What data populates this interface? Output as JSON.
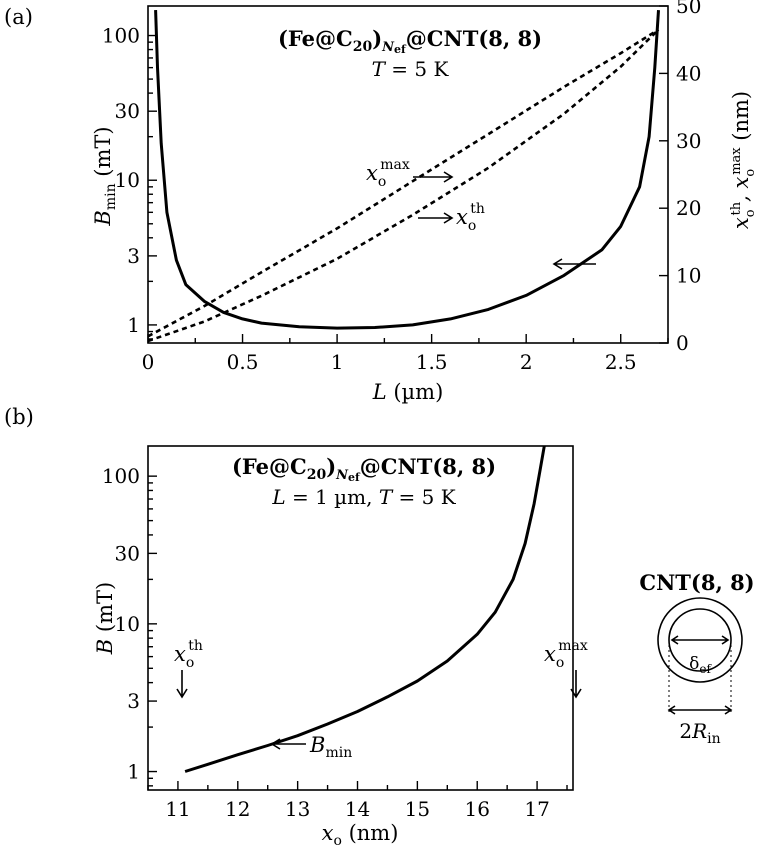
{
  "chart_data": [
    {
      "panel": "(a)",
      "type": "line",
      "title": "(Fe@C20)Nef@CNT(8, 8)",
      "title_parts": {
        "a": "(Fe@C",
        "b": "20",
        "c": ")",
        "d": "N",
        "e": "ef",
        "f": "@CNT(8, 8)"
      },
      "subtitle_parts": {
        "t": "T",
        "rest": " = 5 K"
      },
      "xlabel_parts": {
        "a": "L",
        "b": " (µm)"
      },
      "ylabel_left_parts": {
        "a": "B",
        "b": "min",
        "c": " (mT)"
      },
      "ylabel_right_parts": {
        "a": "x",
        "b": "o",
        "c": "th",
        "d": ", x",
        "e": "o",
        "f": "max",
        "g": " (nm)"
      },
      "xlim": [
        0,
        2.75
      ],
      "ylim_left": [
        0.75,
        160
      ],
      "ylim_right": [
        0,
        50
      ],
      "yscale_left": "log",
      "x_ticks": [
        "0",
        "0.5",
        "1",
        "1.5",
        "2",
        "2.5"
      ],
      "y_left_ticks": [
        "1",
        "3",
        "10",
        "30",
        "100"
      ],
      "y_right_ticks": [
        "0",
        "10",
        "20",
        "30",
        "40",
        "50"
      ],
      "series": [
        {
          "name": "Bmin",
          "axis": "left",
          "style": "solid",
          "x": [
            0.04,
            0.05,
            0.07,
            0.1,
            0.15,
            0.2,
            0.3,
            0.4,
            0.5,
            0.6,
            0.8,
            1.0,
            1.2,
            1.4,
            1.6,
            1.8,
            2.0,
            2.2,
            2.4,
            2.5,
            2.6,
            2.65,
            2.68,
            2.7
          ],
          "y": [
            150,
            60,
            18,
            6,
            2.8,
            1.9,
            1.45,
            1.22,
            1.1,
            1.03,
            0.97,
            0.95,
            0.96,
            1.0,
            1.1,
            1.28,
            1.6,
            2.2,
            3.3,
            4.8,
            9,
            20,
            60,
            150
          ]
        },
        {
          "name": "xo max",
          "axis": "right",
          "style": "dashed",
          "x": [
            0.0,
            0.3,
            0.6,
            1.0,
            1.4,
            1.8,
            2.2,
            2.5,
            2.7
          ],
          "y": [
            1,
            5.5,
            10.5,
            17,
            24,
            31,
            38,
            43,
            46.5
          ]
        },
        {
          "name": "xo th",
          "axis": "right",
          "style": "dashed",
          "x": [
            0.0,
            0.3,
            0.6,
            1.0,
            1.4,
            1.8,
            2.2,
            2.5,
            2.7
          ],
          "y": [
            0.3,
            3.2,
            7,
            12.5,
            19,
            26,
            34,
            41,
            46.5
          ]
        }
      ],
      "annotations": {
        "max": {
          "a": "x",
          "b": "o",
          "c": "max"
        },
        "th": {
          "a": "x",
          "b": "o",
          "c": "th"
        }
      }
    },
    {
      "panel": "(b)",
      "type": "line",
      "title": "(Fe@C20)Nef@CNT(8, 8)",
      "title_parts": {
        "a": "(Fe@C",
        "b": "20",
        "c": ")",
        "d": "N",
        "e": "ef",
        "f": "@CNT(8, 8)"
      },
      "subtitle_parts": {
        "l": "L",
        "mid": " = 1 µm, ",
        "t": "T",
        "rest": " = 5 K"
      },
      "xlabel_parts": {
        "a": "x",
        "b": "o",
        "c": " (nm)"
      },
      "ylabel_parts": {
        "a": "B",
        "b": " (mT)"
      },
      "xlim": [
        10.5,
        17.6
      ],
      "ylim": [
        0.75,
        160
      ],
      "yscale": "log",
      "x_ticks": [
        "11",
        "12",
        "13",
        "14",
        "15",
        "16",
        "17"
      ],
      "y_ticks": [
        "1",
        "3",
        "10",
        "30",
        "100"
      ],
      "series": [
        {
          "name": "Bmin",
          "style": "solid",
          "x": [
            11.12,
            11.5,
            12.0,
            12.5,
            13.0,
            13.5,
            14.0,
            14.5,
            15.0,
            15.5,
            16.0,
            16.3,
            16.6,
            16.8,
            16.95,
            17.05,
            17.12
          ],
          "y": [
            1.0,
            1.12,
            1.3,
            1.5,
            1.75,
            2.1,
            2.55,
            3.2,
            4.1,
            5.6,
            8.5,
            12,
            20,
            35,
            65,
            110,
            160
          ]
        }
      ],
      "annotations": {
        "th": {
          "a": "x",
          "b": "o",
          "c": "th"
        },
        "max": {
          "a": "x",
          "b": "o",
          "c": "max"
        },
        "curve": {
          "a": "B",
          "b": "min"
        }
      }
    }
  ],
  "labels": {
    "panel_a": "(a)",
    "panel_b": "(b)"
  },
  "inset": {
    "title": "CNT(8, 8)",
    "delta": {
      "a": "δ",
      "b": "ef"
    },
    "radius": {
      "a": "2",
      "b": "R",
      "c": "in"
    }
  }
}
